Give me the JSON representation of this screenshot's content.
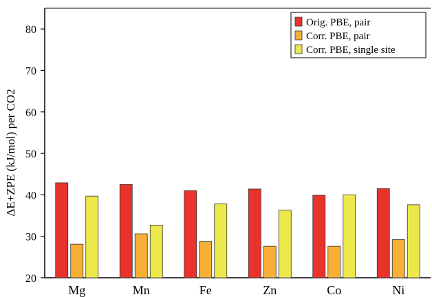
{
  "chart_data": {
    "type": "bar",
    "title": "",
    "xlabel": "",
    "ylabel": "ΔE+ZPE (kJ/mol) per CO2",
    "categories": [
      "Mg",
      "Mn",
      "Fe",
      "Zn",
      "Co",
      "Ni"
    ],
    "ylim": [
      20,
      85
    ],
    "yticks": [
      20,
      30,
      40,
      50,
      60,
      70,
      80
    ],
    "grid": false,
    "legend_position": "top-right",
    "series": [
      {
        "name": "Orig. PBE, pair",
        "color": "#e8322c",
        "values": [
          42.9,
          42.5,
          41.0,
          41.4,
          39.9,
          41.5
        ]
      },
      {
        "name": "Corr. PBE, pair",
        "color": "#f7b035",
        "values": [
          28.1,
          30.6,
          28.7,
          27.6,
          27.6,
          29.2
        ]
      },
      {
        "name": "Corr. PBE, single site",
        "color": "#ede84a",
        "values": [
          39.7,
          32.7,
          37.8,
          36.3,
          40.0,
          37.6
        ]
      }
    ]
  }
}
